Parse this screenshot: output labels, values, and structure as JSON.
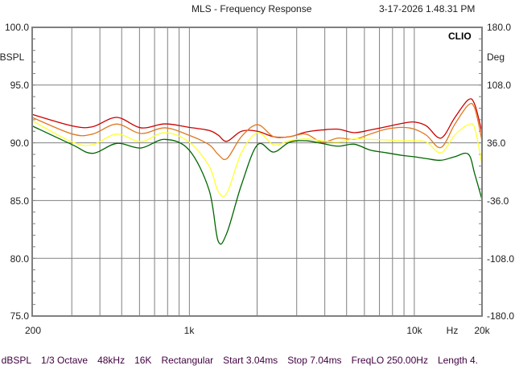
{
  "header": {
    "title": "MLS - Frequency Response",
    "timestamp": "3-17-2026 1.48.31 PM"
  },
  "badge": "CLIO",
  "info_bar": [
    "dBSPL",
    "1/3 Octave",
    "48kHz",
    "16K",
    "Rectangular",
    "Start 3.04ms",
    "Stop 7.04ms",
    "FreqLO 250.00Hz",
    "Length 4."
  ],
  "chart_data": {
    "type": "line",
    "title": "MLS - Frequency Response",
    "xlabel": "Hz",
    "ylabel": "dBSPL",
    "ylabel_right": "Deg",
    "xscale": "log",
    "xlim": [
      200,
      20000
    ],
    "ylim": [
      75,
      100
    ],
    "ylim_right": [
      -180,
      180
    ],
    "grid": true,
    "x_ticks": [
      {
        "v": 200,
        "label": "200"
      },
      {
        "v": 1000,
        "label": "1k"
      },
      {
        "v": 10000,
        "label": "10k"
      },
      {
        "v": 20000,
        "label": "20k"
      }
    ],
    "x_unit_label": "Hz",
    "y_ticks": [
      "100.0",
      "95.0",
      "90.0",
      "85.0",
      "80.0",
      "75.0"
    ],
    "y_ticks_right": [
      "180.0",
      "108.0",
      "36.0",
      "-36.0",
      "-108.0",
      "-180.0"
    ],
    "x": [
      200,
      302,
      371,
      475,
      608,
      778,
      998,
      1225,
      1342,
      1468,
      1703,
      2008,
      2368,
      2792,
      3293,
      3882,
      4580,
      5400,
      6368,
      7503,
      8850,
      10012,
      11330,
      13140,
      15100,
      17380,
      18580,
      20000
    ],
    "series": [
      {
        "name": "red",
        "color": "#cc0000",
        "values": [
          92.46,
          91.46,
          91.39,
          92.2,
          91.3,
          91.64,
          91.34,
          91.07,
          90.67,
          90.13,
          91.0,
          91.0,
          90.53,
          90.53,
          90.93,
          91.11,
          91.18,
          90.88,
          91.11,
          91.39,
          91.69,
          91.8,
          91.46,
          90.41,
          92.15,
          93.73,
          93.31,
          90.88
        ]
      },
      {
        "name": "orange",
        "color": "#e07820",
        "values": [
          92.2,
          90.76,
          90.76,
          91.62,
          90.81,
          91.3,
          90.65,
          89.83,
          89.0,
          88.63,
          90.53,
          91.57,
          90.53,
          90.53,
          90.76,
          90.06,
          90.41,
          90.3,
          90.76,
          91.18,
          91.34,
          91.18,
          90.65,
          89.6,
          91.57,
          93.27,
          92.97,
          90.18
        ]
      },
      {
        "name": "yellow",
        "color": "#ffff30",
        "values": [
          91.92,
          90.06,
          89.83,
          90.76,
          90.11,
          90.88,
          90.06,
          87.97,
          85.8,
          85.65,
          89.14,
          90.88,
          89.83,
          90.18,
          90.34,
          90.18,
          90.06,
          90.34,
          90.3,
          90.25,
          90.18,
          90.18,
          90.06,
          89.14,
          90.65,
          91.57,
          91.23,
          88.09
        ]
      },
      {
        "name": "green",
        "color": "#006600",
        "values": [
          91.46,
          89.83,
          89.09,
          89.95,
          89.55,
          90.3,
          89.37,
          85.88,
          81.5,
          82.2,
          86.35,
          89.83,
          89.2,
          90.06,
          90.18,
          89.95,
          89.71,
          89.88,
          89.37,
          89.14,
          88.91,
          88.79,
          88.63,
          88.49,
          88.79,
          89.02,
          87.28,
          85.08
        ]
      }
    ]
  }
}
